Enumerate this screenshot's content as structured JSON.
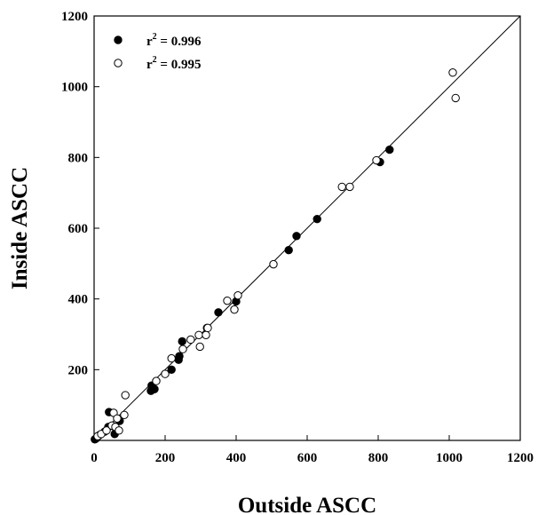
{
  "chart_data": {
    "type": "scatter",
    "xlabel": "Outside ASCC",
    "ylabel": "Inside ASCC",
    "xlim": [
      0,
      1200
    ],
    "ylim": [
      0,
      1200
    ],
    "xticks": [
      0,
      200,
      400,
      600,
      800,
      1000,
      1200
    ],
    "yticks": [
      200,
      400,
      600,
      800,
      1000,
      1200
    ],
    "grid": false,
    "legend_position": "top-left",
    "reference_line": {
      "from": [
        0,
        0
      ],
      "to": [
        1200,
        1200
      ]
    },
    "series": [
      {
        "name": "r² = 0.996",
        "legend_base": "r",
        "legend_sup": "2",
        "legend_rest": " = 0.996",
        "marker": "filled-circle",
        "points": [
          [
            2,
            3
          ],
          [
            5,
            5
          ],
          [
            8,
            8
          ],
          [
            15,
            15
          ],
          [
            30,
            25
          ],
          [
            40,
            38
          ],
          [
            42,
            80
          ],
          [
            58,
            18
          ],
          [
            58,
            38
          ],
          [
            72,
            55
          ],
          [
            160,
            140
          ],
          [
            162,
            155
          ],
          [
            170,
            145
          ],
          [
            218,
            200
          ],
          [
            238,
            228
          ],
          [
            240,
            238
          ],
          [
            248,
            280
          ],
          [
            318,
            318
          ],
          [
            350,
            362
          ],
          [
            400,
            393
          ],
          [
            548,
            538
          ],
          [
            570,
            578
          ],
          [
            628,
            626
          ],
          [
            805,
            787
          ],
          [
            832,
            822
          ]
        ]
      },
      {
        "name": "r² = 0.995",
        "legend_base": "r",
        "legend_sup": "2",
        "legend_rest": " = 0.995",
        "marker": "open-circle",
        "points": [
          [
            10,
            12
          ],
          [
            20,
            18
          ],
          [
            35,
            28
          ],
          [
            50,
            42
          ],
          [
            55,
            78
          ],
          [
            60,
            38
          ],
          [
            65,
            62
          ],
          [
            70,
            28
          ],
          [
            85,
            72
          ],
          [
            88,
            128
          ],
          [
            175,
            168
          ],
          [
            200,
            188
          ],
          [
            218,
            232
          ],
          [
            250,
            258
          ],
          [
            272,
            285
          ],
          [
            295,
            298
          ],
          [
            298,
            265
          ],
          [
            315,
            298
          ],
          [
            320,
            318
          ],
          [
            375,
            395
          ],
          [
            395,
            370
          ],
          [
            405,
            410
          ],
          [
            505,
            498
          ],
          [
            698,
            717
          ],
          [
            720,
            717
          ],
          [
            795,
            792
          ],
          [
            1010,
            1040
          ],
          [
            1018,
            968
          ]
        ]
      }
    ]
  }
}
